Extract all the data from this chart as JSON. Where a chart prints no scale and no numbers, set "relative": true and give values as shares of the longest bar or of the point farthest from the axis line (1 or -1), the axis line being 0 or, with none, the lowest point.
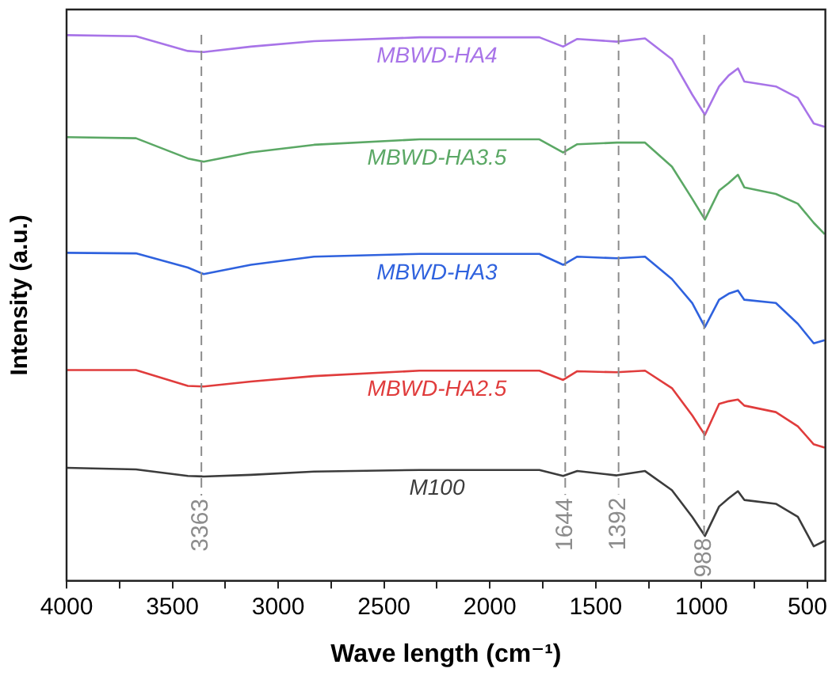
{
  "chart_data": {
    "type": "line",
    "xlabel": "Wave length (cm⁻¹)",
    "ylabel": "Intensity (a.u.)",
    "relative": true,
    "grid": false,
    "legend": false,
    "marker": "none",
    "line_style": "solid",
    "x": [
      4000,
      3672,
      3427,
      3352,
      3129,
      2831,
      2332,
      1766,
      1654,
      1587,
      1401,
      1267,
      1140,
      1044,
      984,
      917,
      872,
      828,
      798,
      649,
      545,
      470,
      418
    ],
    "xlim": [
      4000,
      415
    ],
    "xticks": [
      4000,
      {
        "value": 3750,
        "label": null
      },
      3500,
      {
        "value": 3250,
        "label": null
      },
      3000,
      {
        "value": 2750,
        "label": null
      },
      2500,
      {
        "value": 2250,
        "label": null
      },
      2000,
      {
        "value": 1750,
        "label": null
      },
      1500,
      {
        "value": 1250,
        "label": null
      },
      1000,
      {
        "value": 750,
        "label": null
      },
      500
    ],
    "series": [
      {
        "name": "MBWD-HA4",
        "color": "#a874e8",
        "values": [
          1.0,
          0.998,
          0.971,
          0.969,
          0.979,
          0.989,
          0.996,
          0.996,
          0.979,
          0.993,
          0.988,
          0.994,
          0.956,
          0.891,
          0.854,
          0.906,
          0.926,
          0.939,
          0.915,
          0.906,
          0.885,
          0.838,
          0.832
        ]
      },
      {
        "name": "MBWD-HA3.5",
        "color": "#5ba865",
        "values": [
          0.813,
          0.811,
          0.774,
          0.768,
          0.785,
          0.799,
          0.809,
          0.809,
          0.785,
          0.8,
          0.803,
          0.803,
          0.759,
          0.7,
          0.662,
          0.715,
          0.729,
          0.744,
          0.721,
          0.709,
          0.691,
          0.656,
          0.635
        ]
      },
      {
        "name": "MBWD-HA3",
        "color": "#2f62de",
        "values": [
          0.601,
          0.6,
          0.574,
          0.562,
          0.579,
          0.594,
          0.599,
          0.599,
          0.579,
          0.594,
          0.591,
          0.594,
          0.553,
          0.509,
          0.465,
          0.515,
          0.526,
          0.532,
          0.515,
          0.509,
          0.471,
          0.435,
          0.441
        ]
      },
      {
        "name": "MBWD-HA2.5",
        "color": "#e03c3c",
        "values": [
          0.386,
          0.386,
          0.357,
          0.356,
          0.365,
          0.375,
          0.385,
          0.385,
          0.368,
          0.384,
          0.382,
          0.385,
          0.353,
          0.303,
          0.267,
          0.324,
          0.329,
          0.332,
          0.321,
          0.309,
          0.283,
          0.25,
          0.244
        ]
      },
      {
        "name": "M100",
        "color": "#3c3c3c",
        "values": [
          0.207,
          0.204,
          0.192,
          0.191,
          0.194,
          0.2,
          0.203,
          0.203,
          0.192,
          0.201,
          0.193,
          0.201,
          0.166,
          0.117,
          0.082,
          0.136,
          0.151,
          0.164,
          0.148,
          0.141,
          0.117,
          0.063,
          0.073
        ]
      }
    ],
    "ref_lines": [
      {
        "axis": "x",
        "value": 3363,
        "label": "3363",
        "color": "#8c8c8c",
        "line_style": "dashed"
      },
      {
        "axis": "x",
        "value": 1644,
        "label": "1644",
        "color": "#8c8c8c",
        "line_style": "dashed"
      },
      {
        "axis": "x",
        "value": 1392,
        "label": "1392",
        "color": "#8c8c8c",
        "line_style": "dashed"
      },
      {
        "axis": "x",
        "value": 988,
        "label": "988",
        "color": "#8c8c8c",
        "line_style": "dashed"
      }
    ]
  }
}
